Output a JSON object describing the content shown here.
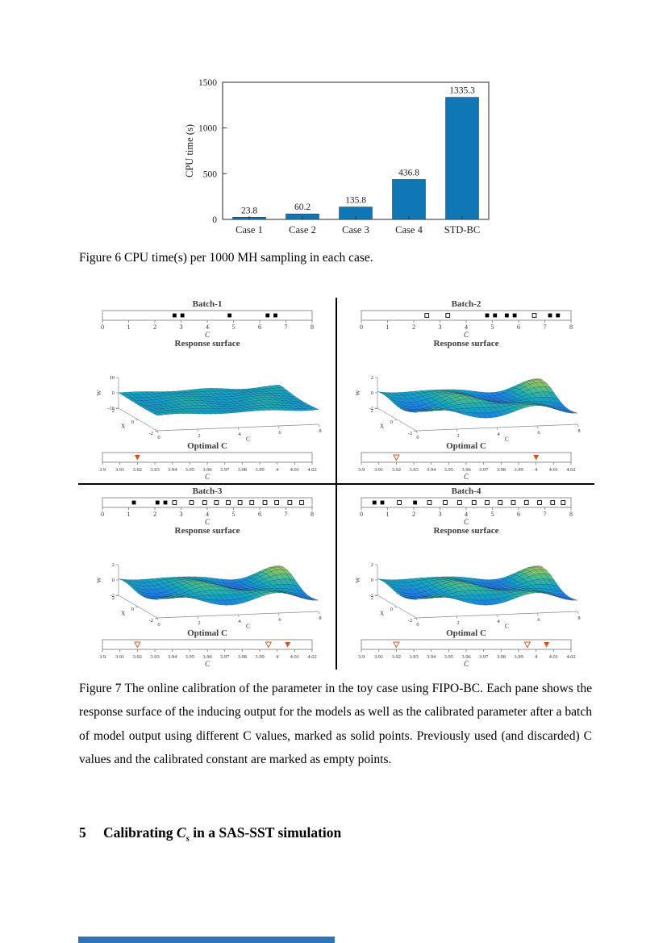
{
  "figure6": {
    "caption": "Figure 6 CPU time(s) per 1000 MH sampling in each case."
  },
  "figure7": {
    "caption": "Figure 7 The online calibration of the parameter in the toy case using FIPO-BC. Each pane shows the response surface of the inducing output for the models as well as the calibrated parameter after a batch of model output using different C values, marked as solid points. Previously used (and discarded) C values and the calibrated constant are marked as empty points."
  },
  "section": {
    "number": "5",
    "title_pre": "Calibrating ",
    "var": "C",
    "var_sub": "s",
    "title_post": " in a SAS-SST simulation"
  },
  "colors": {
    "bar_blue": "#0f77b6",
    "marker_orange": "#D95319",
    "footer_blue": "#2e74b6"
  },
  "chart_data": [
    {
      "id": "cpu-time-bar",
      "type": "bar",
      "title": "",
      "categories": [
        "Case 1",
        "Case 2",
        "Case 3",
        "Case 4",
        "STD-BC"
      ],
      "values": [
        23.8,
        60.2,
        135.8,
        436.8,
        1335.3
      ],
      "xlabel": "",
      "ylabel": "CPU time (s)",
      "ylim": [
        0,
        1500
      ],
      "yticks": [
        0,
        500,
        1000,
        1500
      ],
      "bar_color": "#0f77b6",
      "grid": false,
      "value_labels": true
    },
    {
      "id": "fipo-bc-calibration-panels",
      "type": "panel-grid",
      "panels": [
        {
          "batch": {
            "title": "Batch-1",
            "xlabel": "C",
            "xlim": [
              0,
              8
            ],
            "xticks": [
              "0",
              "1",
              "2",
              "3",
              "4",
              "5",
              "6",
              "7",
              "8"
            ],
            "points": [
              {
                "x": 2.75,
                "filled": true
              },
              {
                "x": 3.05,
                "filled": true
              },
              {
                "x": 4.85,
                "filled": true
              },
              {
                "x": 6.3,
                "filled": true
              },
              {
                "x": 6.6,
                "filled": true
              }
            ]
          },
          "surface": {
            "title": "Response surface",
            "zlabel": "W",
            "xlabel": "X",
            "clabel": "C",
            "zmax": 10,
            "zticks": [
              10,
              0,
              -10
            ],
            "cticks": [
              0,
              2,
              4,
              6,
              8
            ],
            "xticks": [
              2,
              0,
              -2
            ],
            "amp": 2.2,
            "seed": 5
          },
          "optimal": {
            "title": "Optimal C",
            "xlabel": "C",
            "xlim": [
              3.9,
              4.02
            ],
            "xticks": [
              "3.9",
              "3.91",
              "3.92",
              "3.93",
              "3.94",
              "3.95",
              "3.96",
              "3.97",
              "3.98",
              "3.99",
              "4",
              "4.01",
              "4.02"
            ],
            "points": [
              {
                "x": 3.92,
                "filled": true
              }
            ]
          }
        },
        {
          "batch": {
            "title": "Batch-2",
            "xlabel": "C",
            "xlim": [
              0,
              8
            ],
            "xticks": [
              "0",
              "1",
              "2",
              "3",
              "4",
              "5",
              "6",
              "7",
              "8"
            ],
            "points": [
              {
                "x": 2.5,
                "filled": false
              },
              {
                "x": 3.3,
                "filled": false
              },
              {
                "x": 4.8,
                "filled": true
              },
              {
                "x": 5.1,
                "filled": true
              },
              {
                "x": 5.55,
                "filled": true
              },
              {
                "x": 5.85,
                "filled": true
              },
              {
                "x": 6.6,
                "filled": false
              },
              {
                "x": 7.2,
                "filled": true
              },
              {
                "x": 7.5,
                "filled": true
              }
            ]
          },
          "surface": {
            "title": "Response surface",
            "zlabel": "W",
            "xlabel": "X",
            "clabel": "C",
            "zmax": 2,
            "zticks": [
              2,
              0,
              -2
            ],
            "cticks": [
              0,
              2,
              4,
              6,
              8
            ],
            "xticks": [
              2,
              0,
              -2
            ],
            "amp": 1.7,
            "seed": 9
          },
          "optimal": {
            "title": "Optimal C",
            "xlabel": "C",
            "xlim": [
              3.9,
              4.02
            ],
            "xticks": [
              "3.9",
              "3.91",
              "3.92",
              "3.93",
              "3.94",
              "3.95",
              "3.96",
              "3.97",
              "3.98",
              "3.99",
              "4",
              "4.01",
              "4.02"
            ],
            "points": [
              {
                "x": 3.92,
                "filled": false
              },
              {
                "x": 4.0,
                "filled": true
              }
            ]
          }
        },
        {
          "batch": {
            "title": "Batch-3",
            "xlabel": "C",
            "xlim": [
              0,
              8
            ],
            "xticks": [
              "0",
              "1",
              "2",
              "3",
              "4",
              "5",
              "6",
              "7",
              "8"
            ],
            "points": [
              {
                "x": 1.2,
                "filled": true
              },
              {
                "x": 2.1,
                "filled": true
              },
              {
                "x": 2.4,
                "filled": true
              },
              {
                "x": 2.75,
                "filled": false
              },
              {
                "x": 3.4,
                "filled": false
              },
              {
                "x": 3.9,
                "filled": false
              },
              {
                "x": 4.35,
                "filled": false
              },
              {
                "x": 4.8,
                "filled": false
              },
              {
                "x": 5.25,
                "filled": false
              },
              {
                "x": 5.7,
                "filled": false
              },
              {
                "x": 6.2,
                "filled": false
              },
              {
                "x": 6.65,
                "filled": false
              },
              {
                "x": 7.15,
                "filled": false
              },
              {
                "x": 7.6,
                "filled": false
              }
            ]
          },
          "surface": {
            "title": "Response surface",
            "zlabel": "W",
            "xlabel": "X",
            "clabel": "C",
            "zmax": 2,
            "zticks": [
              2,
              0,
              -2
            ],
            "cticks": [
              0,
              2,
              4,
              6,
              8
            ],
            "xticks": [
              2,
              0,
              -2
            ],
            "amp": 1.7,
            "seed": 9
          },
          "optimal": {
            "title": "Optimal C",
            "xlabel": "C",
            "xlim": [
              3.9,
              4.02
            ],
            "xticks": [
              "3.9",
              "3.91",
              "3.92",
              "3.93",
              "3.94",
              "3.95",
              "3.96",
              "3.97",
              "3.98",
              "3.99",
              "4",
              "4.01",
              "4.02"
            ],
            "points": [
              {
                "x": 3.92,
                "filled": false
              },
              {
                "x": 3.995,
                "filled": false
              },
              {
                "x": 4.006,
                "filled": true
              }
            ]
          }
        },
        {
          "batch": {
            "title": "Batch-4",
            "xlabel": "C",
            "xlim": [
              0,
              8
            ],
            "xticks": [
              "0",
              "1",
              "2",
              "3",
              "4",
              "5",
              "6",
              "7",
              "8"
            ],
            "points": [
              {
                "x": 0.5,
                "filled": true
              },
              {
                "x": 0.8,
                "filled": true
              },
              {
                "x": 1.45,
                "filled": false
              },
              {
                "x": 2.05,
                "filled": true
              },
              {
                "x": 2.6,
                "filled": false
              },
              {
                "x": 3.2,
                "filled": false
              },
              {
                "x": 3.75,
                "filled": false
              },
              {
                "x": 4.3,
                "filled": false
              },
              {
                "x": 4.8,
                "filled": false
              },
              {
                "x": 5.3,
                "filled": false
              },
              {
                "x": 5.8,
                "filled": false
              },
              {
                "x": 6.3,
                "filled": false
              },
              {
                "x": 6.8,
                "filled": false
              },
              {
                "x": 7.3,
                "filled": false
              },
              {
                "x": 7.7,
                "filled": false
              }
            ]
          },
          "surface": {
            "title": "Response surface",
            "zlabel": "W",
            "xlabel": "X",
            "clabel": "C",
            "zmax": 2,
            "zticks": [
              2,
              0,
              -2
            ],
            "cticks": [
              0,
              2,
              4,
              6,
              8
            ],
            "xticks": [
              2,
              0,
              -2
            ],
            "amp": 1.7,
            "seed": 9
          },
          "optimal": {
            "title": "Optimal C",
            "xlabel": "C",
            "xlim": [
              3.9,
              4.02
            ],
            "xticks": [
              "3.9",
              "3.91",
              "3.92",
              "3.93",
              "3.94",
              "3.95",
              "3.96",
              "3.97",
              "3.98",
              "3.99",
              "4",
              "4.01",
              "4.02"
            ],
            "points": [
              {
                "x": 3.92,
                "filled": false
              },
              {
                "x": 3.995,
                "filled": false
              },
              {
                "x": 4.006,
                "filled": true
              }
            ]
          }
        }
      ]
    }
  ]
}
